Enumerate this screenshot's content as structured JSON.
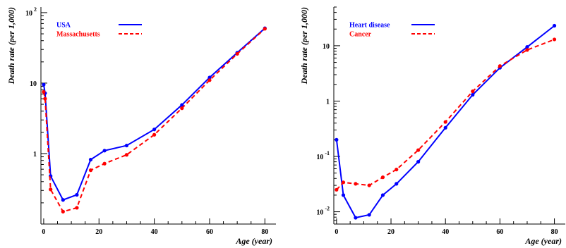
{
  "chart_data": [
    {
      "type": "line",
      "title": "",
      "xlabel": "Age (year)",
      "ylabel": "Death rate (per 1,000)",
      "xlim": [
        -1,
        84
      ],
      "ylim": [
        0.1,
        120
      ],
      "yscale": "log",
      "x_ticks": [
        "0",
        "20",
        "40",
        "60",
        "80"
      ],
      "y_ticks": [
        {
          "value": 1,
          "base": "1",
          "exp": ""
        },
        {
          "value": 10,
          "base": "10",
          "exp": ""
        },
        {
          "value": 100,
          "base": "10",
          "exp": "2"
        }
      ],
      "legend_position": "top-left",
      "grid": false,
      "series": [
        {
          "name": "USA",
          "color": "#0000ff",
          "dash": "solid",
          "x": [
            0,
            0.5,
            2.5,
            7,
            12,
            17,
            22,
            30,
            40,
            50,
            60,
            70,
            80
          ],
          "y": [
            9.5,
            7.2,
            0.48,
            0.22,
            0.26,
            0.82,
            1.1,
            1.3,
            2.2,
            4.9,
            12,
            27,
            60
          ]
        },
        {
          "name": "Massachusetts",
          "color": "#ff0000",
          "dash": "dashed",
          "x": [
            0,
            0.5,
            2.5,
            7,
            12,
            17,
            22,
            30,
            40,
            50,
            60,
            70,
            80
          ],
          "y": [
            7.5,
            6.0,
            0.31,
            0.15,
            0.17,
            0.58,
            0.72,
            0.96,
            1.85,
            4.4,
            11,
            26,
            59
          ]
        }
      ]
    },
    {
      "type": "line",
      "title": "",
      "xlabel": "Age (year)",
      "ylabel": "Death rate (per 1,000)",
      "xlim": [
        -1,
        84
      ],
      "ylim": [
        0.006,
        50
      ],
      "yscale": "log",
      "x_ticks": [
        "0",
        "20",
        "40",
        "60",
        "80"
      ],
      "y_ticks": [
        {
          "value": 0.01,
          "base": "10",
          "exp": "-2"
        },
        {
          "value": 0.1,
          "base": "10",
          "exp": "-1"
        },
        {
          "value": 1,
          "base": "1",
          "exp": ""
        },
        {
          "value": 10,
          "base": "10",
          "exp": ""
        }
      ],
      "legend_position": "top-left",
      "grid": false,
      "series": [
        {
          "name": "Heart disease",
          "color": "#0000ff",
          "dash": "solid",
          "x": [
            0,
            2.5,
            7,
            12,
            17,
            22,
            30,
            40,
            50,
            60,
            70,
            80
          ],
          "y": [
            0.2,
            0.02,
            0.0078,
            0.0088,
            0.02,
            0.032,
            0.08,
            0.33,
            1.3,
            4.0,
            9.5,
            23
          ]
        },
        {
          "name": "Cancer",
          "color": "#ff0000",
          "dash": "dashed",
          "x": [
            0,
            2.5,
            7,
            12,
            17,
            22,
            30,
            40,
            50,
            60,
            70,
            80
          ],
          "y": [
            0.025,
            0.034,
            0.032,
            0.03,
            0.042,
            0.058,
            0.13,
            0.42,
            1.5,
            4.3,
            8.4,
            13
          ]
        }
      ]
    }
  ]
}
